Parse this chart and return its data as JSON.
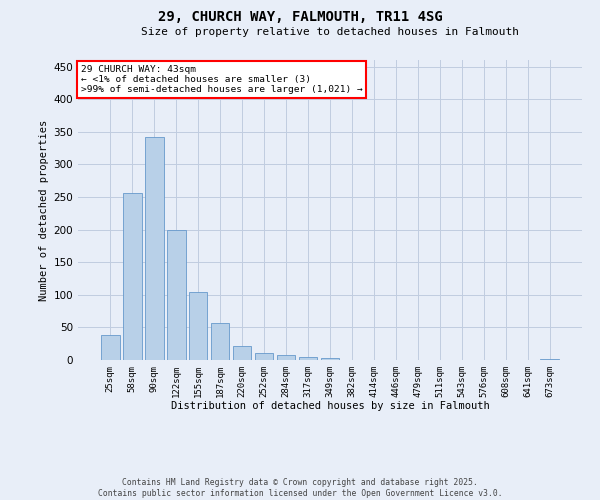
{
  "title": "29, CHURCH WAY, FALMOUTH, TR11 4SG",
  "subtitle": "Size of property relative to detached houses in Falmouth",
  "xlabel": "Distribution of detached houses by size in Falmouth",
  "ylabel": "Number of detached properties",
  "bar_color": "#b8d0e8",
  "bar_edge_color": "#6699cc",
  "categories": [
    "25sqm",
    "58sqm",
    "90sqm",
    "122sqm",
    "155sqm",
    "187sqm",
    "220sqm",
    "252sqm",
    "284sqm",
    "317sqm",
    "349sqm",
    "382sqm",
    "414sqm",
    "446sqm",
    "479sqm",
    "511sqm",
    "543sqm",
    "576sqm",
    "608sqm",
    "641sqm",
    "673sqm"
  ],
  "values": [
    38,
    256,
    342,
    199,
    104,
    57,
    21,
    11,
    8,
    5,
    3,
    0,
    0,
    0,
    0,
    0,
    0,
    0,
    0,
    0,
    1
  ],
  "ylim": [
    0,
    460
  ],
  "yticks": [
    0,
    50,
    100,
    150,
    200,
    250,
    300,
    350,
    400,
    450
  ],
  "annotation_text": "29 CHURCH WAY: 43sqm\n← <1% of detached houses are smaller (3)\n>99% of semi-detached houses are larger (1,021) →",
  "footer_text": "Contains HM Land Registry data © Crown copyright and database right 2025.\nContains public sector information licensed under the Open Government Licence v3.0.",
  "background_color": "#e8eef8",
  "grid_color": "#c0cce0"
}
